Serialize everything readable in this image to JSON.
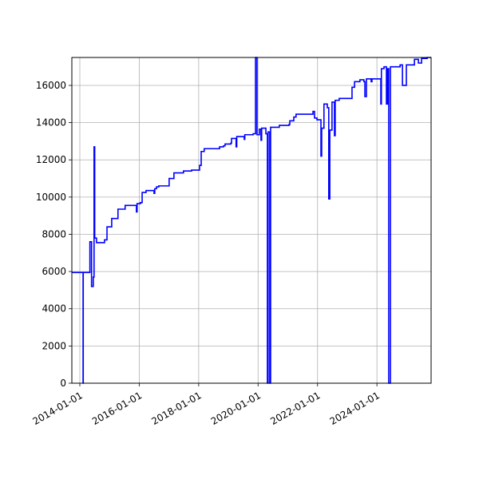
{
  "chart_data": {
    "type": "line",
    "step": "post",
    "title": "",
    "xlabel": "",
    "ylabel": "",
    "xlim": [
      "2013-09-25",
      "2025-10-28"
    ],
    "ylim": [
      0,
      17500
    ],
    "grid": true,
    "line_color": "#0000ff",
    "x_ticks": [
      "2014-01-01",
      "2016-01-01",
      "2018-01-01",
      "2020-01-01",
      "2022-01-01",
      "2024-01-01"
    ],
    "y_ticks": [
      0,
      2000,
      4000,
      6000,
      8000,
      10000,
      12000,
      14000,
      16000
    ],
    "series": [
      {
        "points": [
          [
            "2013-09-25",
            5950
          ],
          [
            "2014-02-10",
            0
          ],
          [
            "2014-02-12",
            5950
          ],
          [
            "2014-05-05",
            7600
          ],
          [
            "2014-05-25",
            5200
          ],
          [
            "2014-06-15",
            5700
          ],
          [
            "2014-06-25",
            12700
          ],
          [
            "2014-07-03",
            7800
          ],
          [
            "2014-07-25",
            7550
          ],
          [
            "2014-11-01",
            7700
          ],
          [
            "2014-12-01",
            8400
          ],
          [
            "2015-01-28",
            8850
          ],
          [
            "2015-04-15",
            9350
          ],
          [
            "2015-07-12",
            9550
          ],
          [
            "2015-11-28",
            9200
          ],
          [
            "2015-12-06",
            9650
          ],
          [
            "2016-01-15",
            9700
          ],
          [
            "2016-02-06",
            10250
          ],
          [
            "2016-03-25",
            10350
          ],
          [
            "2016-07-01",
            10200
          ],
          [
            "2016-07-10",
            10450
          ],
          [
            "2016-08-01",
            10550
          ],
          [
            "2016-08-28",
            10600
          ],
          [
            "2017-01-03",
            11000
          ],
          [
            "2017-03-03",
            11300
          ],
          [
            "2017-06-28",
            11400
          ],
          [
            "2017-10-06",
            11450
          ],
          [
            "2018-01-12",
            11700
          ],
          [
            "2018-02-01",
            12450
          ],
          [
            "2018-03-10",
            12600
          ],
          [
            "2018-09-15",
            12700
          ],
          [
            "2018-11-01",
            12750
          ],
          [
            "2018-11-21",
            12850
          ],
          [
            "2019-02-01",
            12900
          ],
          [
            "2019-02-09",
            13150
          ],
          [
            "2019-04-06",
            12700
          ],
          [
            "2019-04-14",
            13250
          ],
          [
            "2019-07-15",
            13100
          ],
          [
            "2019-07-22",
            13350
          ],
          [
            "2019-11-01",
            13400
          ],
          [
            "2019-12-01",
            17500
          ],
          [
            "2019-12-19",
            13350
          ],
          [
            "2020-01-18",
            13650
          ],
          [
            "2020-02-06",
            13050
          ],
          [
            "2020-02-14",
            13700
          ],
          [
            "2020-04-06",
            13400
          ],
          [
            "2020-04-25",
            0
          ],
          [
            "2020-05-03",
            13500
          ],
          [
            "2020-05-24",
            0
          ],
          [
            "2020-06-03",
            13750
          ],
          [
            "2020-09-18",
            13850
          ],
          [
            "2021-01-15",
            13900
          ],
          [
            "2021-01-25",
            14100
          ],
          [
            "2021-03-15",
            14300
          ],
          [
            "2021-04-12",
            14450
          ],
          [
            "2021-11-06",
            14600
          ],
          [
            "2021-11-25",
            14250
          ],
          [
            "2021-12-25",
            14150
          ],
          [
            "2022-02-12",
            12200
          ],
          [
            "2022-02-21",
            13700
          ],
          [
            "2022-03-21",
            15000
          ],
          [
            "2022-05-01",
            14800
          ],
          [
            "2022-05-19",
            9900
          ],
          [
            "2022-06-01",
            13600
          ],
          [
            "2022-06-28",
            15100
          ],
          [
            "2022-07-28",
            13300
          ],
          [
            "2022-08-06",
            15200
          ],
          [
            "2022-09-25",
            15300
          ],
          [
            "2023-03-01",
            15900
          ],
          [
            "2023-04-01",
            16200
          ],
          [
            "2023-06-06",
            16300
          ],
          [
            "2023-07-25",
            16200
          ],
          [
            "2023-08-06",
            15400
          ],
          [
            "2023-08-25",
            16350
          ],
          [
            "2023-10-22",
            16200
          ],
          [
            "2023-11-01",
            16350
          ],
          [
            "2024-02-18",
            15000
          ],
          [
            "2024-02-25",
            16900
          ],
          [
            "2024-03-28",
            17000
          ],
          [
            "2024-04-27",
            15000
          ],
          [
            "2024-05-10",
            16900
          ],
          [
            "2024-05-25",
            0
          ],
          [
            "2024-06-15",
            17000
          ],
          [
            "2024-10-12",
            17100
          ],
          [
            "2024-11-10",
            16000
          ],
          [
            "2024-12-28",
            17100
          ],
          [
            "2025-04-06",
            17400
          ],
          [
            "2025-05-25",
            17200
          ],
          [
            "2025-07-03",
            17450
          ],
          [
            "2025-09-10",
            17500
          ],
          [
            "2025-10-28",
            17500
          ]
        ]
      }
    ]
  }
}
